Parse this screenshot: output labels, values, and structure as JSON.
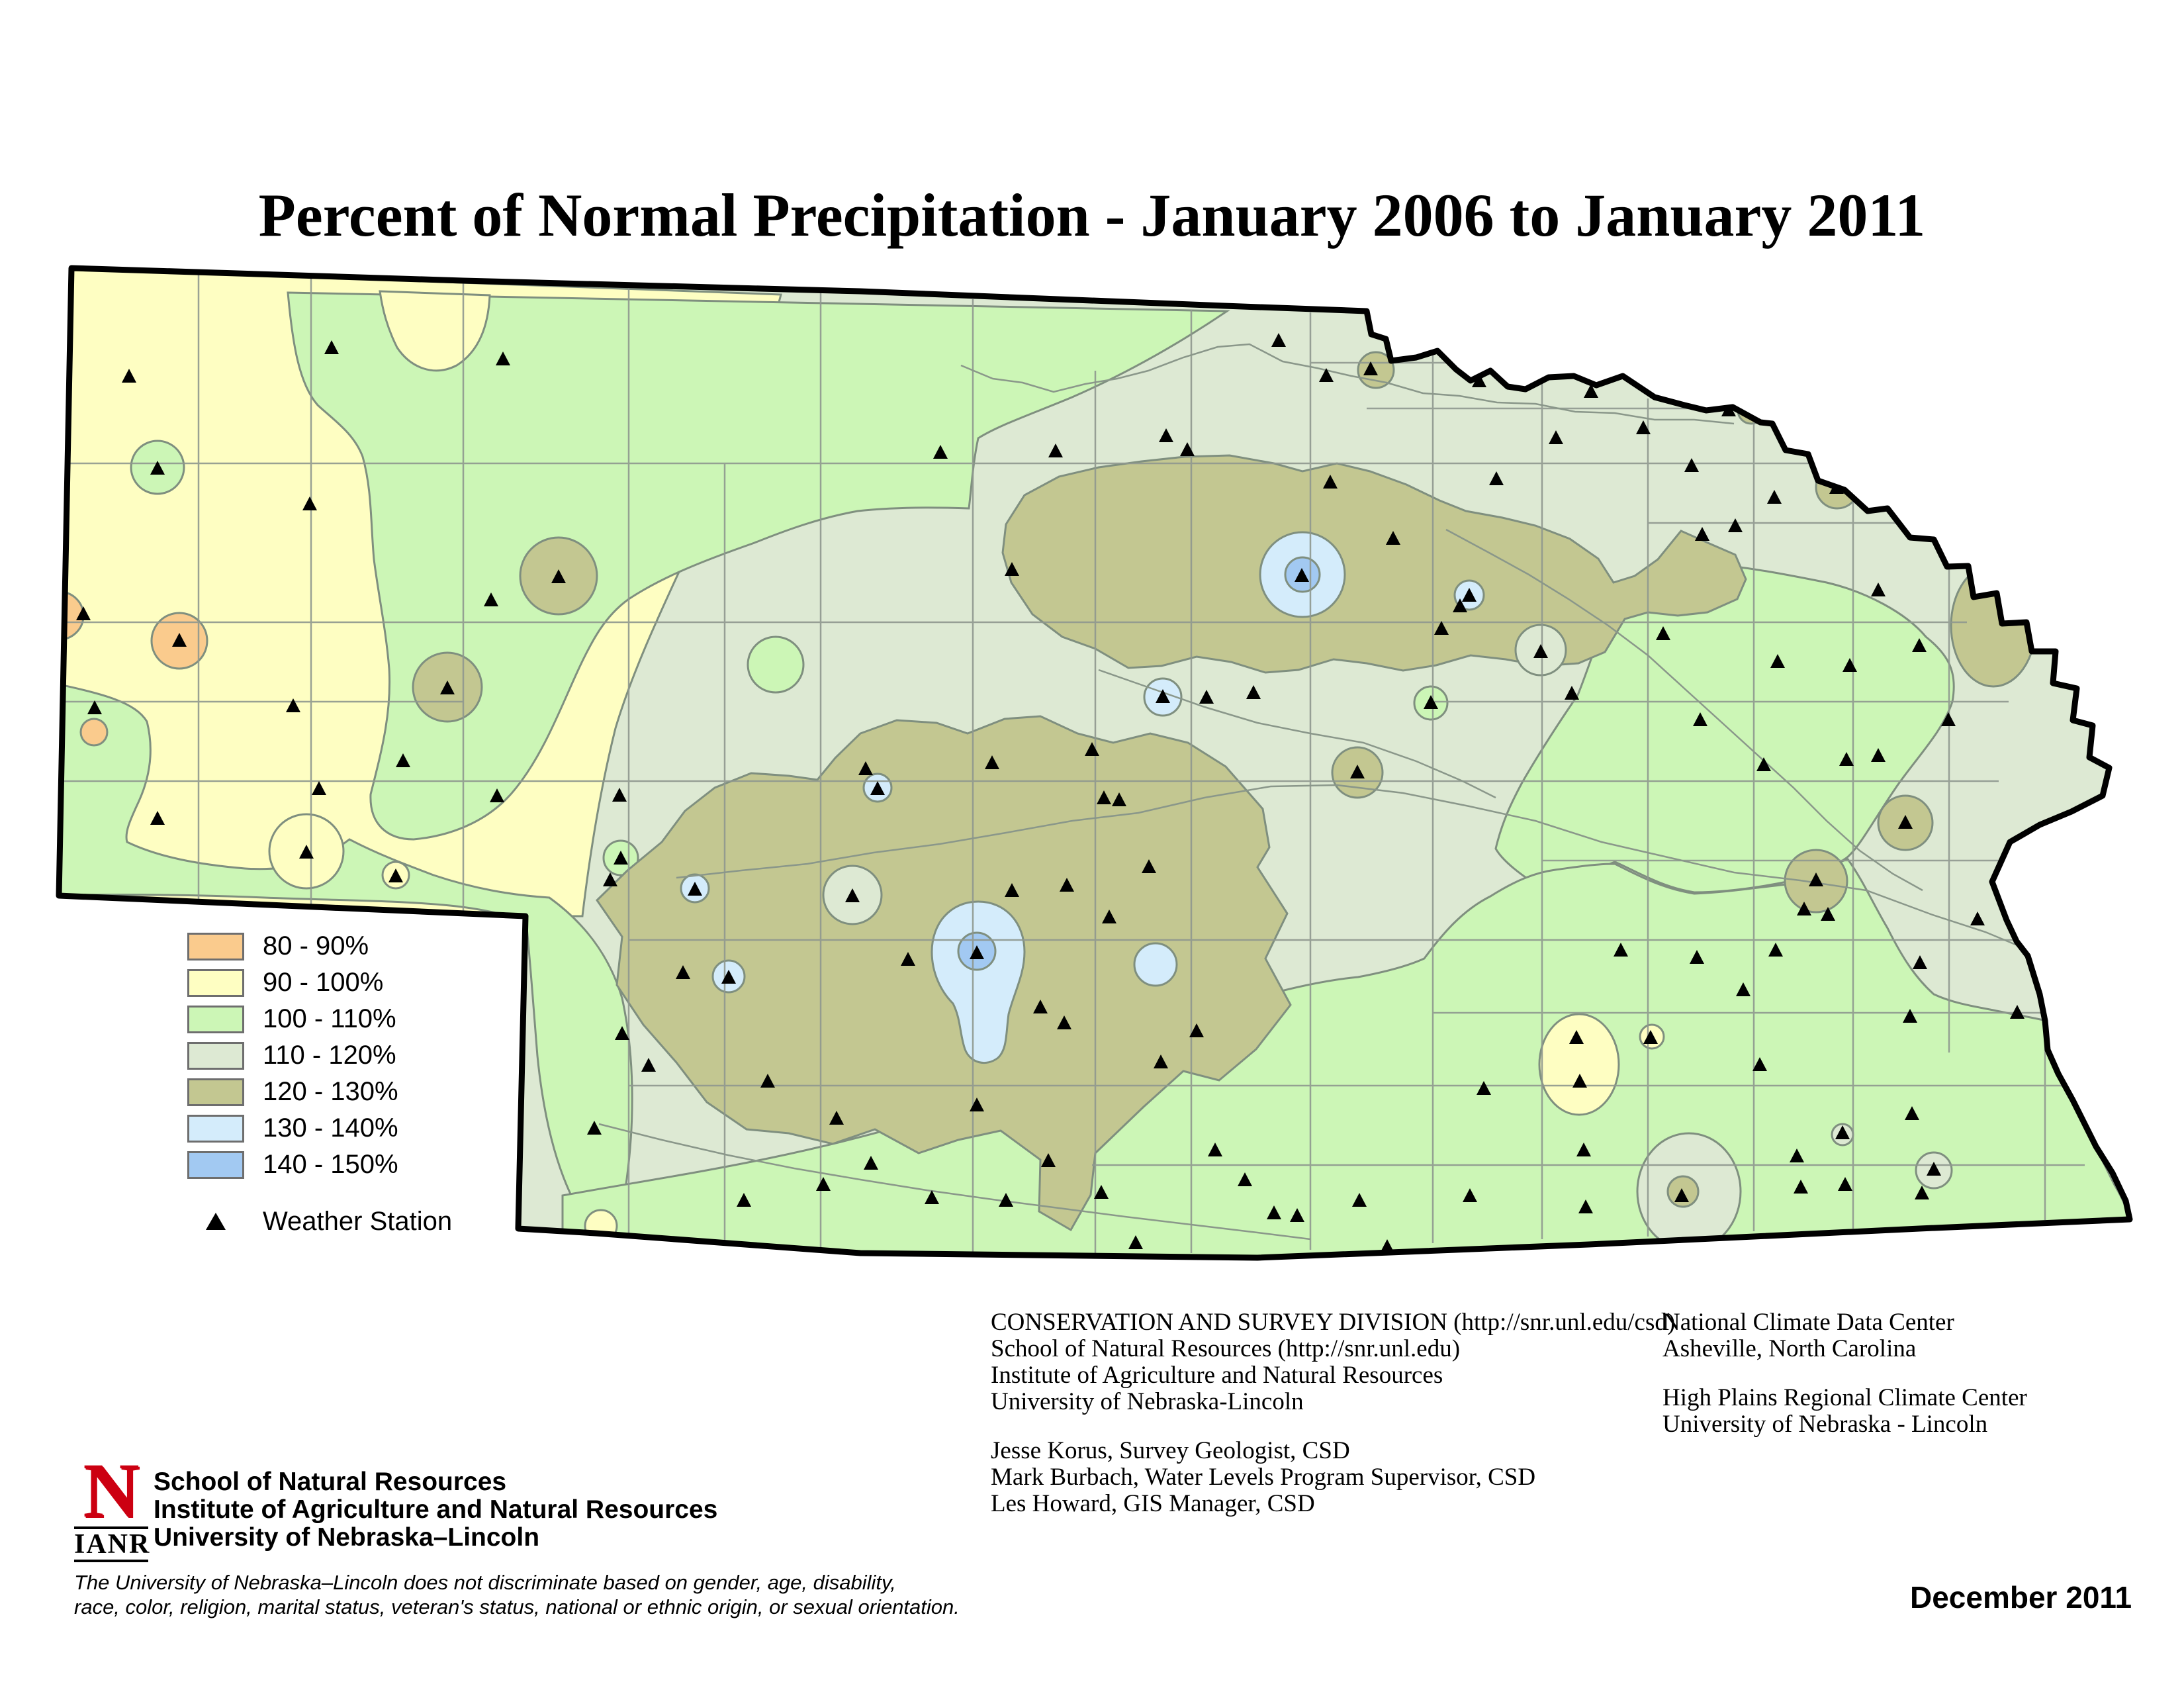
{
  "title": "Percent of Normal Precipitation - January 2006 to January 2011",
  "legend": {
    "items": [
      {
        "label": "80 - 90%",
        "color": "#facb8d"
      },
      {
        "label": "90 - 100%",
        "color": "#fefec2"
      },
      {
        "label": "100 - 110%",
        "color": "#ccf6b6"
      },
      {
        "label": "110 - 120%",
        "color": "#dde9d3"
      },
      {
        "label": "120 - 130%",
        "color": "#c3c791"
      },
      {
        "label": "130 - 140%",
        "color": "#d4ecfb"
      },
      {
        "label": "140 - 150%",
        "color": "#a2c9f2"
      }
    ],
    "station_label": "Weather Station"
  },
  "credits": {
    "division": [
      "CONSERVATION AND SURVEY DIVISION (http://snr.unl.edu/csd)",
      "School of Natural Resources (http://snr.unl.edu)",
      "Institute of Agriculture and Natural Resources",
      "University of Nebraska-Lincoln"
    ],
    "people": [
      "Jesse Korus, Survey Geologist, CSD",
      "Mark Burbach, Water Levels Program Supervisor, CSD",
      "Les Howard, GIS Manager, CSD"
    ],
    "ncdc": [
      "National Climate Data Center",
      "Asheville, North Carolina"
    ],
    "hprcc": [
      "High Plains Regional Climate Center",
      "University of Nebraska - Lincoln"
    ]
  },
  "footer": {
    "logo_letter": "N",
    "logo_acronym": "IANR",
    "org": [
      "School of Natural Resources",
      "Institute of Agriculture and Natural Resources",
      "University of Nebraska–Lincoln"
    ],
    "disclaimer": [
      "The University of Nebraska–Lincoln does not discriminate based on gender, age, disability,",
      "race, color, religion, marital status, veteran's status, national or ethnic origin, or sexual orientation."
    ],
    "date": "December 2011"
  },
  "colors": {
    "logo_red": "#cc0011",
    "state_border": "#000000",
    "contour_line": "#7f8f7f",
    "county_line": "#8f988f"
  },
  "map_data": {
    "type": "choropleth-map",
    "region": "Nebraska",
    "value_field": "Percent of normal precipitation, Jan 2006 - Jan 2011",
    "classes": [
      "80-90%",
      "90-100%",
      "100-110%",
      "110-120%",
      "120-130%",
      "130-140%",
      "140-150%"
    ],
    "stations": [
      [
        195,
        569
      ],
      [
        501,
        526
      ],
      [
        760,
        543
      ],
      [
        238,
        708
      ],
      [
        468,
        762
      ],
      [
        126,
        928
      ],
      [
        271,
        968
      ],
      [
        143,
        1070
      ],
      [
        443,
        1067
      ],
      [
        609,
        1150
      ],
      [
        482,
        1192
      ],
      [
        751,
        1203
      ],
      [
        238,
        1237
      ],
      [
        463,
        1288
      ],
      [
        598,
        1324
      ],
      [
        676,
        1040
      ],
      [
        844,
        872
      ],
      [
        742,
        907
      ],
      [
        936,
        1202
      ],
      [
        938,
        1297
      ],
      [
        922,
        1330
      ],
      [
        1050,
        1344
      ],
      [
        1032,
        1470
      ],
      [
        1101,
        1477
      ],
      [
        980,
        1610
      ],
      [
        1160,
        1634
      ],
      [
        1124,
        1814
      ],
      [
        1244,
        1790
      ],
      [
        1264,
        1690
      ],
      [
        1316,
        1758
      ],
      [
        1308,
        1162
      ],
      [
        1326,
        1192
      ],
      [
        1288,
        1354
      ],
      [
        1372,
        1450
      ],
      [
        1476,
        1440
      ],
      [
        1529,
        1346
      ],
      [
        1572,
        1522
      ],
      [
        1608,
        1546
      ],
      [
        1612,
        1338
      ],
      [
        1668,
        1206
      ],
      [
        1676,
        1386
      ],
      [
        1476,
        1670
      ],
      [
        1408,
        1810
      ],
      [
        1520,
        1814
      ],
      [
        1584,
        1754
      ],
      [
        1664,
        1802
      ],
      [
        940,
        1562
      ],
      [
        898,
        1705
      ],
      [
        1421,
        684
      ],
      [
        1595,
        682
      ],
      [
        1794,
        680
      ],
      [
        1529,
        861
      ],
      [
        1499,
        1153
      ],
      [
        1650,
        1133
      ],
      [
        1691,
        1209
      ],
      [
        1736,
        1310
      ],
      [
        1754,
        1605
      ],
      [
        1808,
        1558
      ],
      [
        1716,
        1878
      ],
      [
        1836,
        1738
      ],
      [
        1881,
        1783
      ],
      [
        1925,
        1833
      ],
      [
        1960,
        1837
      ],
      [
        2054,
        1814
      ],
      [
        2096,
        1884
      ],
      [
        1932,
        515
      ],
      [
        2004,
        568
      ],
      [
        2071,
        558
      ],
      [
        1762,
        659
      ],
      [
        2010,
        729
      ],
      [
        2235,
        576
      ],
      [
        2261,
        724
      ],
      [
        2351,
        662
      ],
      [
        2404,
        592
      ],
      [
        2483,
        647
      ],
      [
        2612,
        620
      ],
      [
        2556,
        704
      ],
      [
        2572,
        808
      ],
      [
        2622,
        795
      ],
      [
        2105,
        814
      ],
      [
        1967,
        870
      ],
      [
        2220,
        900
      ],
      [
        2206,
        916
      ],
      [
        2178,
        950
      ],
      [
        2513,
        958
      ],
      [
        2686,
        1000
      ],
      [
        2795,
        1006
      ],
      [
        2328,
        985
      ],
      [
        2681,
        752
      ],
      [
        2838,
        892
      ],
      [
        2900,
        976
      ],
      [
        1757,
        1053
      ],
      [
        1823,
        1054
      ],
      [
        1894,
        1047
      ],
      [
        2051,
        1167
      ],
      [
        2162,
        1062
      ],
      [
        2375,
        1048
      ],
      [
        2569,
        1088
      ],
      [
        2665,
        1156
      ],
      [
        2790,
        1148
      ],
      [
        2838,
        1142
      ],
      [
        2944,
        1088
      ],
      [
        2726,
        1374
      ],
      [
        2762,
        1382
      ],
      [
        2988,
        1389
      ],
      [
        2901,
        1455
      ],
      [
        2886,
        1536
      ],
      [
        3048,
        1530
      ],
      [
        2889,
        1683
      ],
      [
        2784,
        1712
      ],
      [
        2721,
        1794
      ],
      [
        2904,
        1803
      ],
      [
        2922,
        1767
      ],
      [
        2744,
        1330
      ],
      [
        2879,
        1243
      ],
      [
        2775,
        737
      ],
      [
        2449,
        1436
      ],
      [
        2494,
        1568
      ],
      [
        2564,
        1447
      ],
      [
        2634,
        1496
      ],
      [
        2683,
        1436
      ],
      [
        2659,
        1609
      ],
      [
        2382,
        1568
      ],
      [
        2387,
        1634
      ],
      [
        2393,
        1738
      ],
      [
        2242,
        1645
      ],
      [
        2221,
        1807
      ],
      [
        2396,
        1824
      ],
      [
        2541,
        1807
      ],
      [
        2715,
        1747
      ],
      [
        2788,
        1790
      ],
      [
        3131,
        1620
      ]
    ]
  }
}
